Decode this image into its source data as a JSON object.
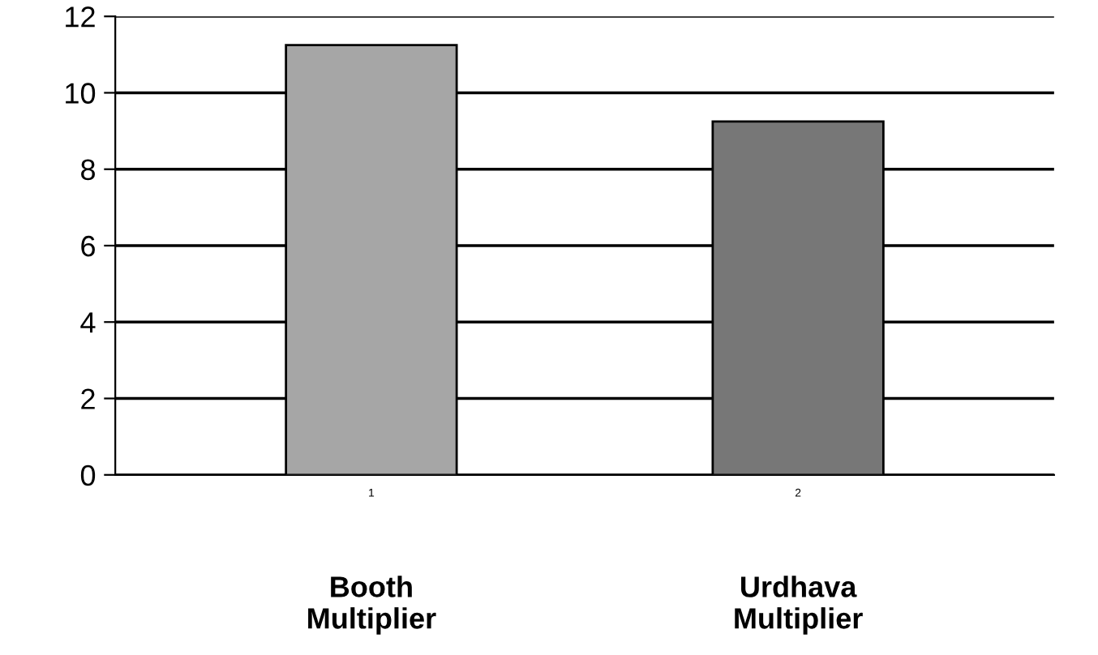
{
  "chart_data": {
    "type": "bar",
    "categories": [
      "1",
      "2"
    ],
    "values": [
      11.25,
      9.25
    ],
    "colors": [
      "#a6a6a6",
      "#777777"
    ],
    "ylim": [
      0,
      12
    ],
    "yticks": [
      0,
      2,
      4,
      6,
      8,
      10,
      12
    ],
    "grid": "y",
    "annotations": [
      "Booth\nMultiplier",
      "Urdhava\nMultiplier"
    ]
  }
}
